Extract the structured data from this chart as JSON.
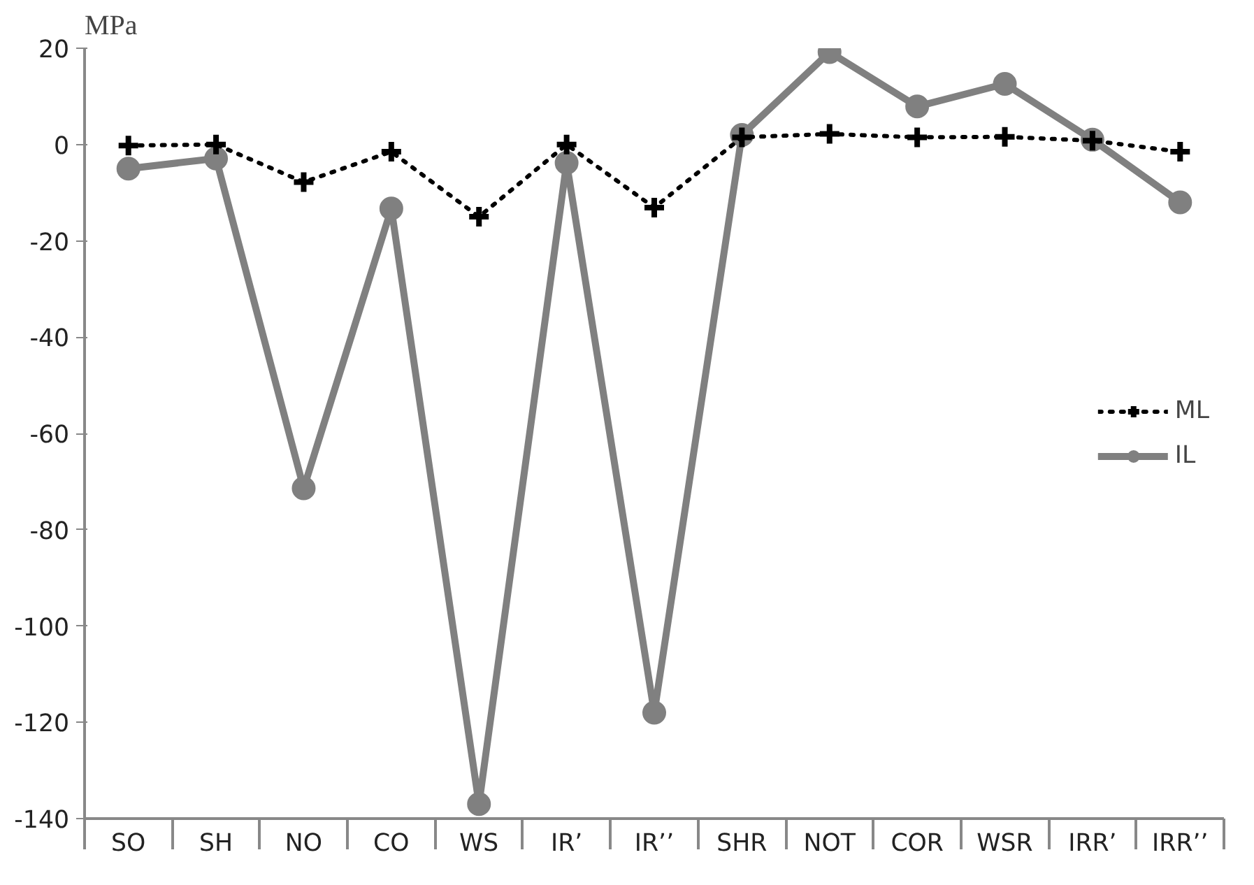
{
  "chart_data": {
    "type": "line",
    "ylabel": "MPa",
    "categories": [
      "SO",
      "SH",
      "NO",
      "CO",
      "WS",
      "IR’",
      "IR’’",
      "SHR",
      "NOT",
      "COR",
      "WSR",
      "IRR’",
      "IRR’’"
    ],
    "series": [
      {
        "name": "ML",
        "color": "#000000",
        "marker": "cross",
        "line_style": "dotted",
        "values": [
          -0.2,
          0,
          -7.8,
          -1.5,
          -15,
          0,
          -13.1,
          1.5,
          2.2,
          1.5,
          1.6,
          0.8,
          -1.5
        ]
      },
      {
        "name": "IL",
        "color": "#808080",
        "marker": "circle",
        "line_style": "solid",
        "values": [
          -5,
          -2.9,
          -71.4,
          -13.3,
          -137,
          -3.8,
          -118,
          2,
          19.2,
          7.9,
          12.6,
          1,
          -12
        ]
      }
    ],
    "ylim": [
      -140,
      20
    ],
    "yticks": [
      -140,
      -120,
      -100,
      -80,
      -60,
      -40,
      -20,
      0,
      20
    ],
    "grid": false,
    "legend": "right"
  }
}
